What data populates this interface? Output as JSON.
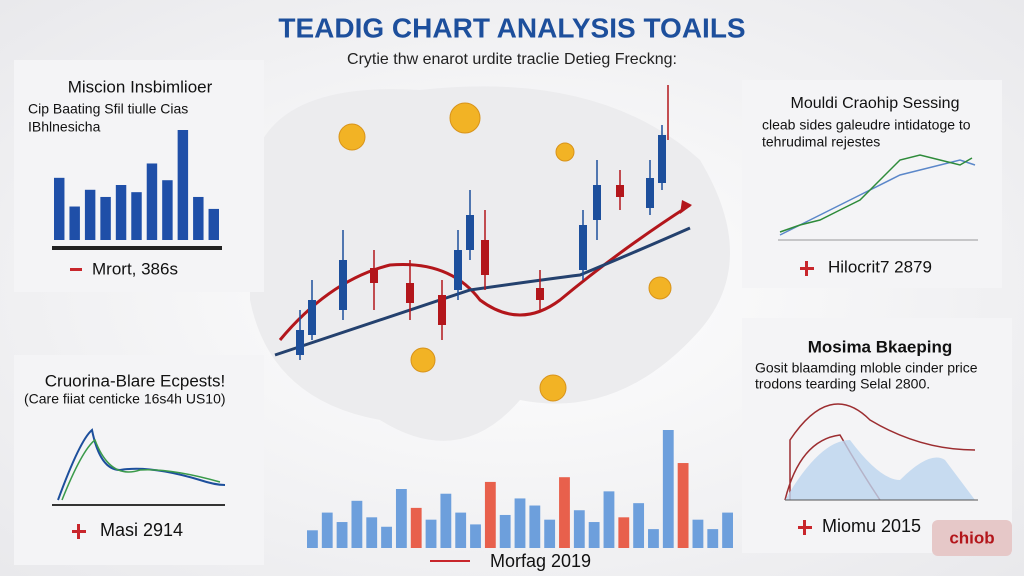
{
  "header": {
    "title": "TEADIG CHART ANALYSIS TOAILS",
    "subtitle": "Crytie thw enarot urdite traclie Detieg Freckng:"
  },
  "panels": [
    {
      "title": "Miscion Insbimlioer",
      "lines": [
        "Cip Baating Sfil tiulle Cias",
        "IBhlnesicha"
      ],
      "footer": "Mrort, 386s"
    },
    {
      "title": "Cruorina-Blare Ecpests!",
      "lines": [
        "(Care fiiat centicke 16s4h US10)"
      ],
      "footer": "Masi 2914"
    },
    {
      "title": "Mouldi Craohip Sessing",
      "lines": [
        "cleab sides galeudre intidatoge to",
        "tehrudimal rejestes"
      ],
      "footer": "Hilocrit7 2879"
    },
    {
      "title": "Mosima Bkaeping",
      "lines": [
        "Gosit blaamding mloble cinder price",
        "trodons tearding Selal 2800."
      ],
      "footer": "Miomu 2015"
    }
  ],
  "left_bars": {
    "values": [
      5.2,
      2.8,
      4.2,
      3.6,
      4.6,
      4,
      6.4,
      5,
      9.2,
      3.6,
      2.6
    ],
    "color": "#1f4fa8"
  },
  "bottom_bars": {
    "values": [
      1.5,
      3,
      2.2,
      4,
      2.6,
      1.8,
      5,
      3.4,
      2.4,
      4.6,
      3,
      2,
      5.6,
      2.8,
      4.2,
      3.6,
      2.4,
      6,
      3.2,
      2.2,
      4.8,
      2.6,
      3.8,
      1.6,
      10,
      7.2,
      2.4,
      1.6,
      3
    ],
    "color": "#6d9fdc",
    "accent_color": "#e8604c",
    "accent_bars": [
      7,
      12,
      17,
      21,
      25
    ]
  },
  "caption": "Morfag 2019",
  "logo": "chiob"
}
